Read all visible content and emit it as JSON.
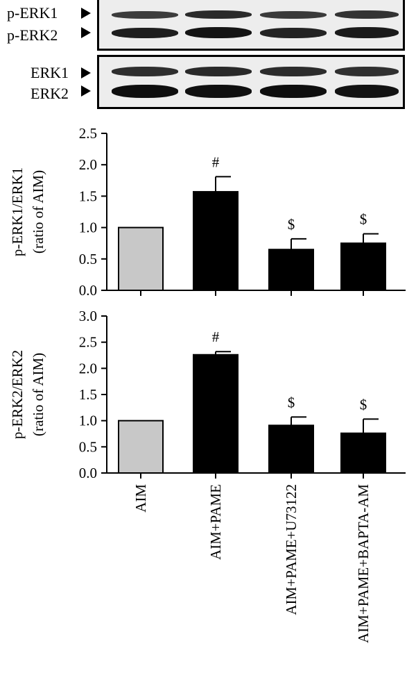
{
  "blots": {
    "top": {
      "labels": [
        "p-ERK1",
        "p-ERK2"
      ]
    },
    "bottom": {
      "labels": [
        "ERK1",
        "ERK2"
      ]
    }
  },
  "colors": {
    "control_bar": "#c8c8c8",
    "treatment_bar": "#000000",
    "axis": "#000000"
  },
  "chart_data": [
    {
      "type": "bar",
      "ylabel_lines": [
        "p-ERK1/ERK1",
        "(ratio of AIM)"
      ],
      "ylim": [
        0,
        2.5
      ],
      "yticks": [
        "0.0",
        "0.5",
        "1.0",
        "1.5",
        "2.0",
        "2.5"
      ],
      "categories": [
        "AIM",
        "AIM+PAME",
        "AIM+PAME+U73122",
        "AIM+PAME+BAPTA-AM"
      ],
      "values": [
        1.0,
        1.57,
        0.65,
        0.75
      ],
      "errors": [
        0,
        0.24,
        0.17,
        0.15
      ],
      "annotations": [
        "",
        "#",
        "$",
        "$"
      ]
    },
    {
      "type": "bar",
      "ylabel_lines": [
        "p-ERK2/ERK2",
        "(ratio of AIM)"
      ],
      "ylim": [
        0,
        3.0
      ],
      "yticks": [
        "0.0",
        "0.5",
        "1.0",
        "1.5",
        "2.0",
        "2.5",
        "3.0"
      ],
      "categories": [
        "AIM",
        "AIM+PAME",
        "AIM+PAME+U73122",
        "AIM+PAME+BAPTA-AM"
      ],
      "values": [
        1.0,
        2.26,
        0.91,
        0.76
      ],
      "errors": [
        0,
        0.06,
        0.16,
        0.27
      ],
      "annotations": [
        "",
        "#",
        "$",
        "$"
      ]
    }
  ]
}
